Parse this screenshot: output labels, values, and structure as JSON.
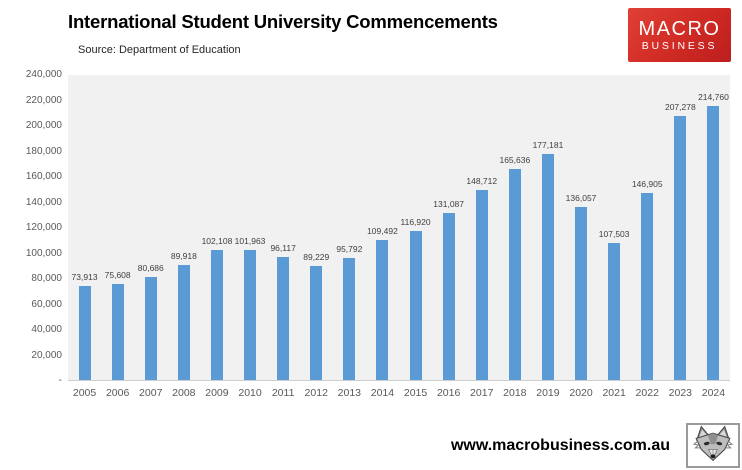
{
  "header": {
    "title": "International Student University Commencements",
    "source": "Source: Department of Education"
  },
  "logo": {
    "line1": "MACRO",
    "line2": "BUSINESS",
    "bg_color": "#d02a24",
    "text_color": "#ffffff"
  },
  "footer": {
    "url": "www.macrobusiness.com.au",
    "wolf_logo": "wolf-head-sketch"
  },
  "chart_data": {
    "type": "bar",
    "title": "International Student University Commencements",
    "source": "Source: Department of Education",
    "categories": [
      "2005",
      "2006",
      "2007",
      "2008",
      "2009",
      "2010",
      "2011",
      "2012",
      "2013",
      "2014",
      "2015",
      "2016",
      "2017",
      "2018",
      "2019",
      "2020",
      "2021",
      "2022",
      "2023",
      "2024"
    ],
    "values": [
      73913,
      75608,
      80686,
      89918,
      102108,
      101963,
      96117,
      89229,
      95792,
      109492,
      116920,
      131087,
      148712,
      165636,
      177181,
      136057,
      107503,
      146905,
      207278,
      214760
    ],
    "data_labels": [
      "73,913",
      "75,608",
      "80,686",
      "89,918",
      "102,108",
      "101,963",
      "96,117",
      "89,229",
      "95,792",
      "109,492",
      "116,920",
      "131,087",
      "148,712",
      "165,636",
      "177,181",
      "136,057",
      "107,503",
      "146,905",
      "207,278",
      "214,760"
    ],
    "xlabel": "",
    "ylabel": "",
    "ylim": [
      0,
      240000
    ],
    "y_ticks": [
      {
        "value": 240000,
        "label": "240,000"
      },
      {
        "value": 220000,
        "label": "220,000"
      },
      {
        "value": 200000,
        "label": "200,000"
      },
      {
        "value": 180000,
        "label": "180,000"
      },
      {
        "value": 160000,
        "label": "160,000"
      },
      {
        "value": 140000,
        "label": "140,000"
      },
      {
        "value": 120000,
        "label": "120,000"
      },
      {
        "value": 100000,
        "label": "100,000"
      },
      {
        "value": 80000,
        "label": "80,000"
      },
      {
        "value": 60000,
        "label": "60,000"
      },
      {
        "value": 40000,
        "label": "40,000"
      },
      {
        "value": 20000,
        "label": "20,000"
      },
      {
        "value": 0,
        "label": "-"
      }
    ],
    "grid": false,
    "legend": false,
    "bar_color": "#5b9bd5",
    "plot_bg": "#f1f1f1",
    "data_label_color": "#404040",
    "axis_label_color": "#595959"
  }
}
